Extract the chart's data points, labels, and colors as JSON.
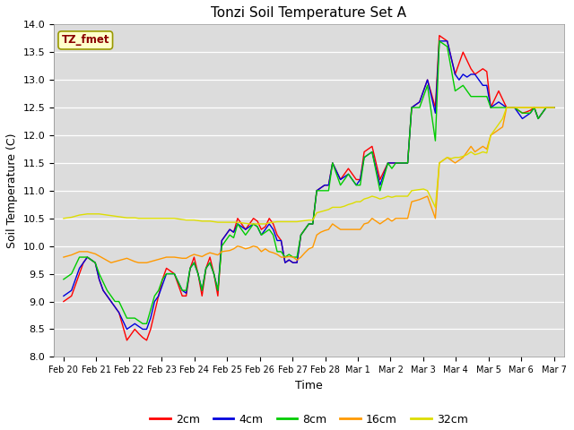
{
  "title": "Tonzi Soil Temperature Set A",
  "xlabel": "Time",
  "ylabel": "Soil Temperature (C)",
  "ylim": [
    8.0,
    14.0
  ],
  "yticks": [
    8.0,
    8.5,
    9.0,
    9.5,
    10.0,
    10.5,
    11.0,
    11.5,
    12.0,
    12.5,
    13.0,
    13.5,
    14.0
  ],
  "legend_label": "TZ_fmet",
  "series_labels": [
    "2cm",
    "4cm",
    "8cm",
    "16cm",
    "32cm"
  ],
  "series_colors": [
    "#ff0000",
    "#0000dd",
    "#00cc00",
    "#ff9900",
    "#dddd00"
  ],
  "background_color": "#dcdcdc",
  "n_days": 16,
  "x_tick_labels": [
    "Feb 20",
    "Feb 21",
    "Feb 22",
    "Feb 23",
    "Feb 24",
    "Feb 25",
    "Feb 26",
    "Feb 27",
    "Feb 28",
    "Mar 1",
    "Mar 2",
    "Mar 3",
    "Mar 4",
    "Mar 5",
    "Mar 6",
    "Mar 7"
  ],
  "pts_per_day": 4,
  "data_2cm": [
    9.0,
    9.05,
    9.1,
    9.3,
    9.5,
    9.7,
    9.8,
    9.75,
    9.7,
    9.4,
    9.2,
    9.1,
    9.0,
    8.9,
    8.8,
    8.55,
    8.3,
    8.4,
    8.5,
    8.42,
    8.35,
    8.3,
    8.5,
    8.8,
    9.1,
    9.4,
    9.6,
    9.55,
    9.5,
    9.3,
    9.1,
    9.1,
    9.6,
    9.8,
    9.5,
    9.1,
    9.6,
    9.8,
    9.5,
    9.1,
    10.1,
    10.2,
    10.3,
    10.25,
    10.5,
    10.4,
    10.3,
    10.4,
    10.5,
    10.45,
    10.3,
    10.35,
    10.5,
    10.4,
    10.2,
    10.1,
    9.7,
    9.75,
    9.7,
    9.7,
    10.2,
    10.3,
    10.4,
    10.4,
    11.0,
    11.05,
    11.1,
    11.1,
    11.5,
    11.35,
    11.2,
    11.3,
    11.4,
    11.3,
    11.2,
    11.2,
    11.7,
    11.75,
    11.8,
    11.5,
    11.2,
    11.35,
    11.5,
    11.5,
    11.5,
    11.5,
    11.5,
    11.5,
    12.5,
    12.55,
    12.6,
    12.8,
    13.0,
    12.75,
    12.5,
    13.8,
    13.75,
    13.7,
    13.4,
    13.1,
    13.3,
    13.5,
    13.35,
    13.2,
    13.1,
    13.15,
    13.2,
    13.15,
    12.5,
    12.65,
    12.8,
    12.65,
    12.5,
    12.5,
    12.5,
    12.45,
    12.4,
    12.42,
    12.45,
    12.5,
    12.3,
    12.4,
    12.5,
    12.5,
    12.5
  ],
  "data_4cm": [
    9.1,
    9.15,
    9.2,
    9.4,
    9.6,
    9.7,
    9.8,
    9.75,
    9.7,
    9.4,
    9.2,
    9.1,
    9.0,
    8.9,
    8.8,
    8.65,
    8.5,
    8.55,
    8.6,
    8.55,
    8.5,
    8.5,
    8.7,
    9.0,
    9.1,
    9.3,
    9.5,
    9.5,
    9.5,
    9.35,
    9.2,
    9.15,
    9.6,
    9.7,
    9.5,
    9.2,
    9.6,
    9.7,
    9.5,
    9.2,
    10.1,
    10.2,
    10.3,
    10.25,
    10.4,
    10.35,
    10.3,
    10.35,
    10.4,
    10.35,
    10.2,
    10.3,
    10.4,
    10.3,
    10.1,
    10.1,
    9.7,
    9.75,
    9.7,
    9.7,
    10.2,
    10.3,
    10.4,
    10.4,
    11.0,
    11.05,
    11.1,
    11.1,
    11.5,
    11.35,
    11.2,
    11.25,
    11.3,
    11.2,
    11.1,
    11.2,
    11.6,
    11.65,
    11.7,
    11.4,
    11.1,
    11.3,
    11.5,
    11.5,
    11.5,
    11.5,
    11.5,
    11.5,
    12.5,
    12.55,
    12.6,
    12.8,
    13.0,
    12.7,
    12.4,
    13.7,
    13.7,
    13.7,
    13.4,
    13.1,
    13.0,
    13.1,
    13.05,
    13.1,
    13.1,
    13.0,
    12.9,
    12.9,
    12.5,
    12.55,
    12.6,
    12.55,
    12.5,
    12.5,
    12.5,
    12.4,
    12.3,
    12.35,
    12.4,
    12.5,
    12.3,
    12.4,
    12.5,
    12.5,
    12.5
  ],
  "data_8cm": [
    9.4,
    9.45,
    9.5,
    9.65,
    9.8,
    9.8,
    9.8,
    9.75,
    9.7,
    9.5,
    9.35,
    9.2,
    9.1,
    9.0,
    9.0,
    8.85,
    8.7,
    8.7,
    8.7,
    8.65,
    8.6,
    8.6,
    8.85,
    9.1,
    9.2,
    9.4,
    9.5,
    9.5,
    9.5,
    9.35,
    9.2,
    9.2,
    9.6,
    9.7,
    9.5,
    9.2,
    9.6,
    9.7,
    9.5,
    9.2,
    10.0,
    10.1,
    10.2,
    10.15,
    10.4,
    10.3,
    10.2,
    10.3,
    10.4,
    10.35,
    10.2,
    10.25,
    10.3,
    10.2,
    9.9,
    9.9,
    9.8,
    9.85,
    9.8,
    9.8,
    10.2,
    10.3,
    10.4,
    10.4,
    11.0,
    11.0,
    11.0,
    11.0,
    11.5,
    11.3,
    11.1,
    11.2,
    11.3,
    11.2,
    11.1,
    11.1,
    11.6,
    11.65,
    11.7,
    11.35,
    11.0,
    11.25,
    11.5,
    11.4,
    11.5,
    11.5,
    11.5,
    11.5,
    12.5,
    12.5,
    12.5,
    12.7,
    12.9,
    12.4,
    11.9,
    13.7,
    13.65,
    13.6,
    13.2,
    12.8,
    12.85,
    12.9,
    12.8,
    12.7,
    12.7,
    12.7,
    12.7,
    12.7,
    12.5,
    12.5,
    12.5,
    12.5,
    12.5,
    12.5,
    12.5,
    12.45,
    12.4,
    12.4,
    12.4,
    12.5,
    12.3,
    12.4,
    12.5,
    12.5,
    12.5
  ],
  "data_16cm": [
    9.8,
    9.82,
    9.84,
    9.87,
    9.9,
    9.9,
    9.9,
    9.88,
    9.86,
    9.82,
    9.78,
    9.74,
    9.7,
    9.72,
    9.74,
    9.76,
    9.78,
    9.75,
    9.72,
    9.7,
    9.7,
    9.7,
    9.72,
    9.74,
    9.76,
    9.78,
    9.8,
    9.8,
    9.8,
    9.79,
    9.78,
    9.78,
    9.82,
    9.85,
    9.83,
    9.81,
    9.85,
    9.88,
    9.86,
    9.84,
    9.9,
    9.91,
    9.92,
    9.95,
    10.0,
    9.98,
    9.95,
    9.97,
    10.0,
    9.98,
    9.9,
    9.95,
    9.9,
    9.88,
    9.85,
    9.8,
    9.8,
    9.81,
    9.8,
    9.75,
    9.8,
    9.88,
    9.95,
    9.98,
    10.2,
    10.25,
    10.28,
    10.3,
    10.4,
    10.35,
    10.3,
    10.3,
    10.3,
    10.3,
    10.3,
    10.3,
    10.4,
    10.42,
    10.5,
    10.45,
    10.4,
    10.45,
    10.5,
    10.45,
    10.5,
    10.5,
    10.5,
    10.5,
    10.8,
    10.82,
    10.84,
    10.87,
    10.9,
    10.7,
    10.5,
    11.5,
    11.55,
    11.6,
    11.55,
    11.5,
    11.55,
    11.6,
    11.7,
    11.8,
    11.7,
    11.75,
    11.8,
    11.75,
    12.0,
    12.05,
    12.1,
    12.15,
    12.5,
    12.5,
    12.5,
    12.5,
    12.5,
    12.5,
    12.5,
    12.5,
    12.5,
    12.5,
    12.5,
    12.5,
    12.5
  ],
  "data_32cm": [
    10.5,
    10.51,
    10.52,
    10.54,
    10.56,
    10.57,
    10.58,
    10.58,
    10.58,
    10.58,
    10.57,
    10.56,
    10.55,
    10.54,
    10.53,
    10.52,
    10.51,
    10.51,
    10.51,
    10.5,
    10.5,
    10.5,
    10.5,
    10.5,
    10.5,
    10.5,
    10.5,
    10.5,
    10.5,
    10.49,
    10.48,
    10.47,
    10.47,
    10.47,
    10.46,
    10.45,
    10.45,
    10.45,
    10.44,
    10.43,
    10.43,
    10.43,
    10.43,
    10.43,
    10.43,
    10.42,
    10.41,
    10.4,
    10.4,
    10.4,
    10.4,
    10.4,
    10.42,
    10.43,
    10.44,
    10.44,
    10.44,
    10.44,
    10.44,
    10.44,
    10.45,
    10.46,
    10.47,
    10.47,
    10.6,
    10.62,
    10.64,
    10.66,
    10.7,
    10.7,
    10.7,
    10.72,
    10.75,
    10.77,
    10.8,
    10.8,
    10.85,
    10.87,
    10.9,
    10.88,
    10.85,
    10.87,
    10.9,
    10.88,
    10.9,
    10.9,
    10.9,
    10.9,
    11.0,
    11.01,
    11.02,
    11.03,
    11.0,
    10.85,
    10.7,
    11.5,
    11.55,
    11.6,
    11.58,
    11.6,
    11.6,
    11.62,
    11.65,
    11.7,
    11.65,
    11.67,
    11.7,
    11.68,
    12.0,
    12.1,
    12.2,
    12.3,
    12.5,
    12.5,
    12.5,
    12.5,
    12.5,
    12.5,
    12.5,
    12.5,
    12.5,
    12.5,
    12.5,
    12.5,
    12.5
  ]
}
